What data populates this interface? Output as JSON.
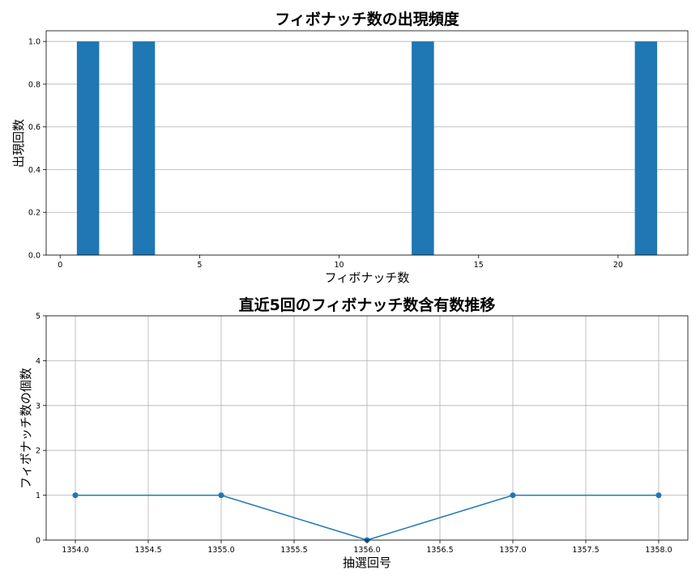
{
  "chart_data": [
    {
      "type": "bar",
      "title": "フィボナッチ数の出現頻度",
      "xlabel": "フィボナッチ数",
      "ylabel": "出現回数",
      "x": [
        1,
        3,
        13,
        21
      ],
      "values": [
        1.0,
        1.0,
        1.0,
        1.0
      ],
      "xlim": [
        -0.5,
        22.5
      ],
      "ylim": [
        0,
        1.05
      ],
      "xticks": [
        0,
        5,
        10,
        15,
        20
      ],
      "xtick_labels": [
        "0",
        "5",
        "10",
        "15",
        "20"
      ],
      "yticks": [
        0,
        0.2,
        0.4,
        0.6,
        0.8,
        1.0
      ],
      "ytick_labels": [
        "0.0",
        "0.2",
        "0.4",
        "0.6",
        "0.8",
        "1.0"
      ],
      "grid": "y",
      "color": "#1f77b4"
    },
    {
      "type": "line",
      "title": "直近5回のフィボナッチ数含有数推移",
      "xlabel": "抽選回号",
      "ylabel": "フィボナッチ数の個数",
      "x": [
        1354,
        1355,
        1356,
        1357,
        1358
      ],
      "y": [
        1,
        1,
        0,
        1,
        1
      ],
      "xlim": [
        1353.8,
        1358.2
      ],
      "ylim": [
        0,
        5
      ],
      "xticks": [
        1354.0,
        1354.5,
        1355.0,
        1355.5,
        1356.0,
        1356.5,
        1357.0,
        1357.5,
        1358.0
      ],
      "xtick_labels": [
        "1354.0",
        "1354.5",
        "1355.0",
        "1355.5",
        "1356.0",
        "1356.5",
        "1357.0",
        "1357.5",
        "1358.0"
      ],
      "yticks": [
        0,
        1,
        2,
        3,
        4,
        5
      ],
      "ytick_labels": [
        "0",
        "1",
        "2",
        "3",
        "4",
        "5"
      ],
      "grid": "both",
      "markers": true,
      "color": "#1f77b4"
    }
  ]
}
